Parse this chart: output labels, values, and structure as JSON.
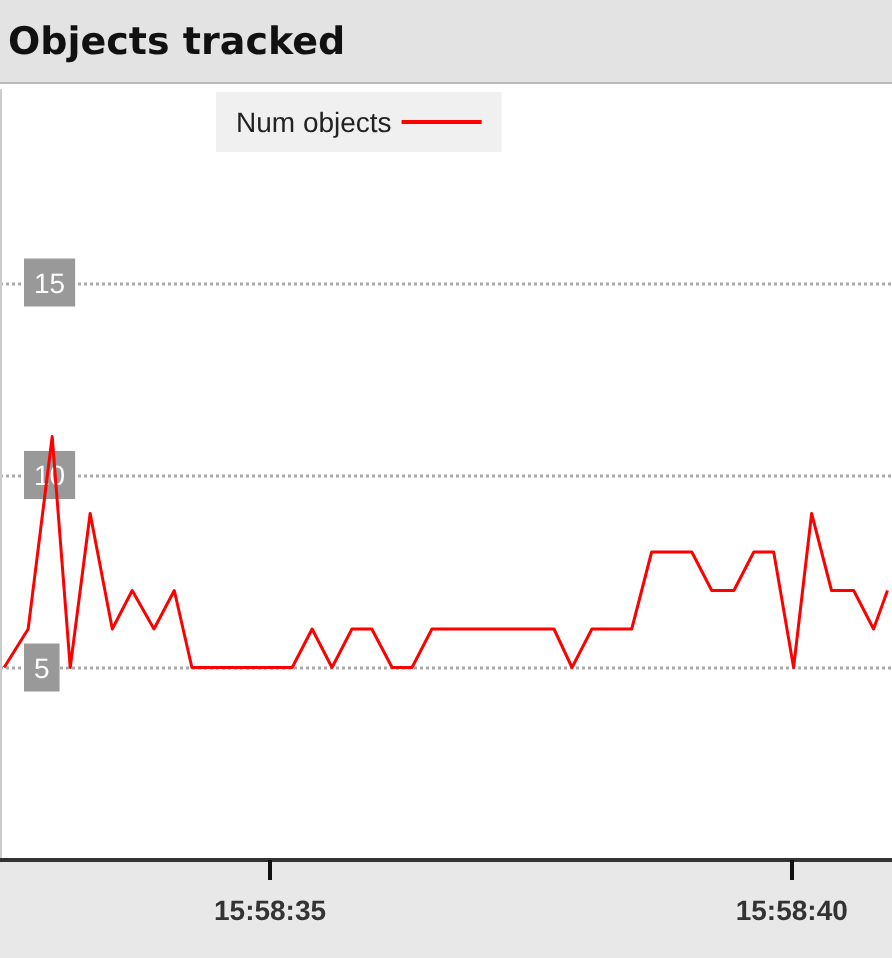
{
  "chart_data": {
    "type": "line",
    "title": "Objects tracked",
    "x": [
      15.975681,
      15.975745,
      15.975809,
      15.975857,
      15.97591,
      15.975969,
      15.976022,
      15.97608,
      15.976134,
      15.976181,
      15.976448,
      15.976501,
      15.976554,
      15.976607,
      15.97666,
      15.976714,
      15.976767,
      15.97682,
      15.977145,
      15.977193,
      15.977246,
      15.977352,
      15.977405,
      15.977512,
      15.977565,
      15.977624,
      15.977677,
      15.97773,
      15.977783,
      15.977831,
      15.977884,
      15.977943,
      15.977996,
      15.978033
    ],
    "series": [
      {
        "name": "Num objects",
        "color": "#ff0000",
        "values": [
          5,
          6,
          11,
          5,
          9,
          6,
          7,
          6,
          7,
          5,
          5,
          6,
          5,
          6,
          6,
          5,
          5,
          6,
          6,
          5,
          6,
          6,
          8,
          8,
          7,
          7,
          8,
          8,
          5,
          9,
          7,
          7,
          6,
          7
        ]
      }
    ],
    "xlim": [
      15.97567,
      15.978045
    ],
    "xticks": [
      {
        "value": 15.976389,
        "label": "15:58:35"
      },
      {
        "value": 15.977778,
        "label": "15:58:40"
      }
    ],
    "ylim": [
      0,
      20
    ],
    "yticks": [
      5,
      10,
      15
    ],
    "grid": "y",
    "legend": "top",
    "marker": "none",
    "line_style": "solid"
  }
}
